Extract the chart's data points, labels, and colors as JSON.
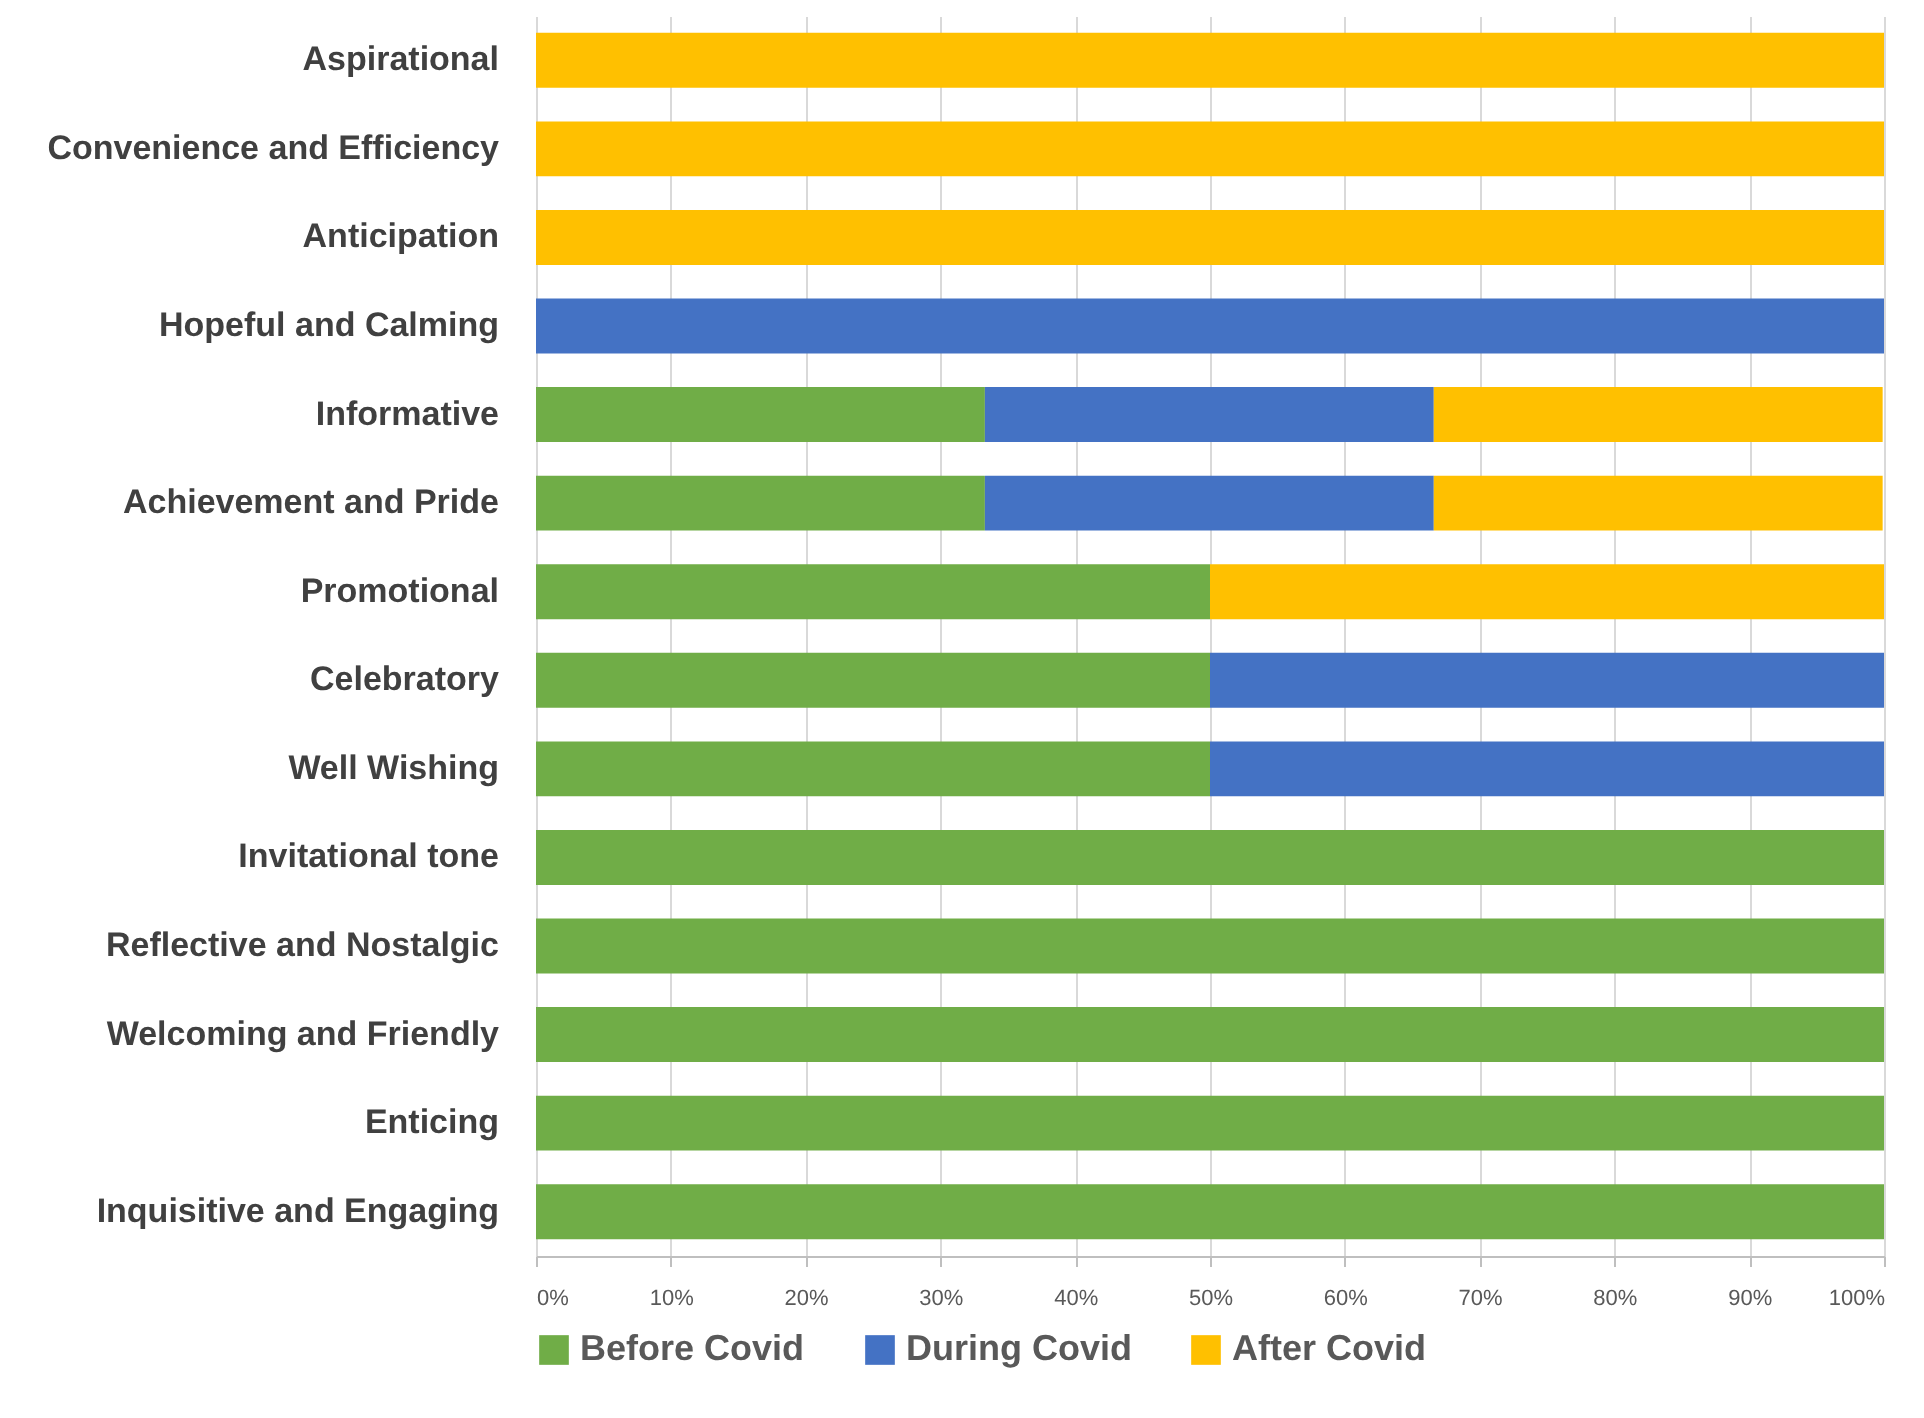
{
  "chart_data": {
    "type": "bar",
    "orientation": "horizontal",
    "stacked": true,
    "grid": "x",
    "legend": "bottom",
    "categories": [
      "Aspirational",
      "Convenience and Efficiency",
      "Anticipation",
      "Hopeful and Calming",
      "Informative",
      "Achievement and Pride",
      "Promotional",
      "Celebratory",
      "Well Wishing",
      "Invitational tone",
      "Reflective and Nostalgic",
      "Welcoming and Friendly",
      "Enticing",
      "Inquisitive and Engaging"
    ],
    "series": [
      {
        "name": "Before Covid",
        "color": "#70ad47",
        "values": [
          0,
          0,
          0,
          0,
          33.3,
          33.3,
          50,
          50,
          50,
          100,
          100,
          100,
          100,
          100
        ]
      },
      {
        "name": "During Covid",
        "color": "#4472c4",
        "values": [
          0,
          0,
          0,
          100,
          33.3,
          33.3,
          0,
          50,
          50,
          0,
          0,
          0,
          0,
          0
        ]
      },
      {
        "name": "After Covid",
        "color": "#ffc000",
        "values": [
          100,
          100,
          100,
          0,
          33.3,
          33.3,
          50,
          0,
          0,
          0,
          0,
          0,
          0,
          0
        ]
      }
    ],
    "xlim": [
      0,
      100
    ],
    "xticks": [
      {
        "value": 0,
        "label": "0%"
      },
      {
        "value": 10,
        "label": "10%"
      },
      {
        "value": 20,
        "label": "20%"
      },
      {
        "value": 30,
        "label": "30%"
      },
      {
        "value": 40,
        "label": "40%"
      },
      {
        "value": 50,
        "label": "50%"
      },
      {
        "value": 60,
        "label": "60%"
      },
      {
        "value": 70,
        "label": "70%"
      },
      {
        "value": 80,
        "label": "80%"
      },
      {
        "value": 90,
        "label": "90%"
      },
      {
        "value": 100,
        "label": "100%"
      }
    ]
  }
}
